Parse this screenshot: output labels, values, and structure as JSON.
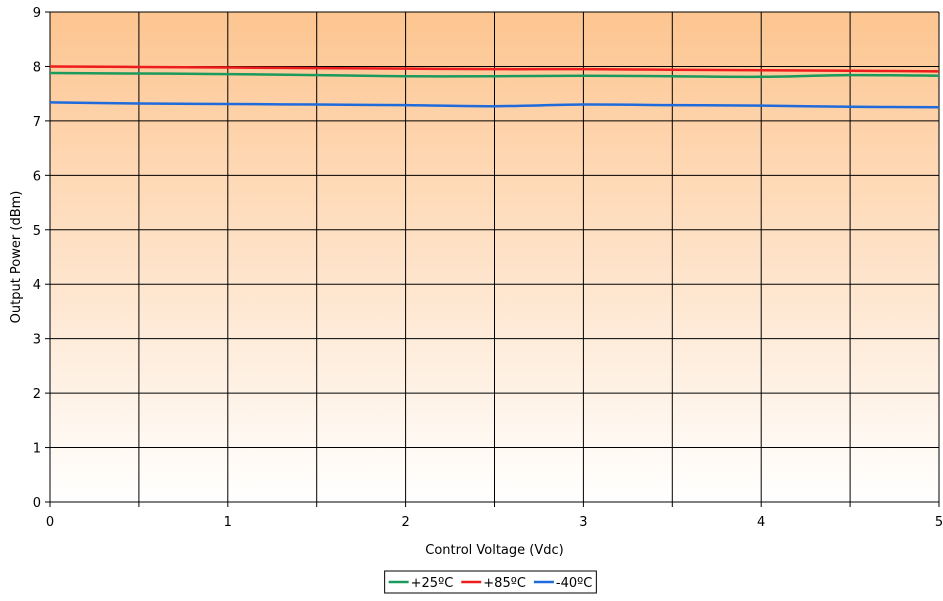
{
  "chart_data": {
    "type": "line",
    "title": "",
    "xlabel": "Control Voltage (Vdc)",
    "ylabel": "Output Power (dBm)",
    "xlim": [
      0,
      5
    ],
    "ylim": [
      0,
      9
    ],
    "xticks": [
      0,
      1,
      2,
      3,
      4,
      5
    ],
    "yticks": [
      0,
      1,
      2,
      3,
      4,
      5,
      6,
      7,
      8,
      9
    ],
    "x_grid_step": 0.5,
    "y_grid_step": 1,
    "grid": true,
    "legend_position": "bottom-center",
    "background_gradient": [
      "#fdc590",
      "#ffffff"
    ],
    "x": [
      0,
      0.5,
      1,
      1.5,
      2,
      2.5,
      3,
      3.5,
      4,
      4.5,
      5
    ],
    "series": [
      {
        "name": "+25ºC",
        "color": "#1a9a5c",
        "values": [
          7.88,
          7.87,
          7.86,
          7.84,
          7.82,
          7.82,
          7.83,
          7.82,
          7.81,
          7.84,
          7.83
        ]
      },
      {
        "name": "+85ºC",
        "color": "#ee1c1c",
        "values": [
          8.0,
          7.99,
          7.98,
          7.97,
          7.96,
          7.95,
          7.95,
          7.94,
          7.93,
          7.92,
          7.91
        ]
      },
      {
        "name": "-40ºC",
        "color": "#1f6bdc",
        "values": [
          7.34,
          7.32,
          7.31,
          7.3,
          7.29,
          7.27,
          7.3,
          7.29,
          7.28,
          7.26,
          7.25
        ]
      }
    ]
  }
}
